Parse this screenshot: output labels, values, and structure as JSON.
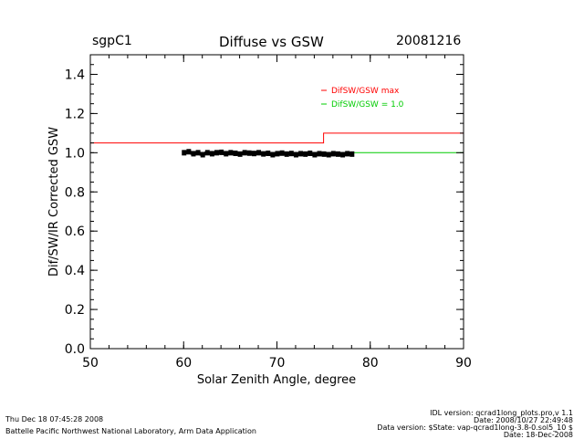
{
  "header": {
    "site": "sgpC1",
    "title": "Diffuse vs GSW",
    "date": "20081216"
  },
  "chart_data": {
    "type": "line",
    "title": "Diffuse vs GSW",
    "xlabel": "Solar Zenith Angle, degree",
    "ylabel": "Dif/SW/IR Corrected GSW",
    "xlim": [
      50,
      90
    ],
    "ylim": [
      0.0,
      1.5
    ],
    "x_ticks": [
      50,
      60,
      70,
      80,
      90
    ],
    "x_tick_labels": [
      "50",
      "60",
      "70",
      "80",
      "90"
    ],
    "y_ticks": [
      0.0,
      0.2,
      0.4,
      0.6,
      0.8,
      1.0,
      1.2,
      1.4
    ],
    "y_tick_labels": [
      "0.0",
      "0.2",
      "0.4",
      "0.6",
      "0.8",
      "1.0",
      "1.2",
      "1.4"
    ],
    "grid": false,
    "legend_position": "top-right",
    "legend": [
      {
        "label": "DifSW/GSW max",
        "color": "#ff0000"
      },
      {
        "label": "DifSW/GSW = 1.0",
        "color": "#00cc00"
      }
    ],
    "series": [
      {
        "name": "DifSW/GSW max",
        "color": "#ff0000",
        "x": [
          50,
          75,
          75,
          90
        ],
        "y": [
          1.05,
          1.05,
          1.1,
          1.1
        ]
      },
      {
        "name": "DifSW/GSW = 1.0",
        "color": "#00cc00",
        "x": [
          75,
          90
        ],
        "y": [
          1.0,
          1.0
        ]
      },
      {
        "type": "scatter",
        "color": "#000000",
        "x": [
          60.0,
          60.5,
          61.0,
          61.5,
          62.0,
          62.5,
          63.0,
          63.5,
          64.0,
          64.5,
          65.0,
          65.5,
          66.0,
          66.5,
          67.0,
          67.5,
          68.0,
          68.5,
          69.0,
          69.5,
          70.0,
          70.5,
          71.0,
          71.5,
          72.0,
          72.5,
          73.0,
          73.5,
          74.0,
          74.5,
          75.0,
          75.5,
          76.0,
          76.5,
          77.0,
          77.5,
          78.0
        ],
        "y": [
          1.0,
          1.005,
          0.995,
          1.0,
          0.99,
          1.0,
          0.995,
          1.0,
          1.002,
          0.995,
          1.0,
          0.997,
          0.993,
          1.0,
          0.998,
          0.996,
          1.0,
          0.994,
          0.997,
          0.99,
          0.995,
          0.998,
          0.993,
          0.996,
          0.99,
          0.995,
          0.993,
          0.997,
          0.99,
          0.995,
          0.993,
          0.99,
          0.995,
          0.993,
          0.99,
          0.995,
          0.993
        ]
      }
    ]
  },
  "footer": {
    "run_time": "Thu Dec 18 07:45:28 2008",
    "organization": "Battelle Pacific Northwest National Laboratory, Arm Data Application",
    "idl_version": "IDL version: qcrad1long_plots.pro,v 1.1",
    "idl_date": "Date: 2008/10/27 22:49:48",
    "data_version": "Data version: $State: vap-qcrad1long-3.8-0.sol5_10 $",
    "data_date": "Date: 18-Dec-2008"
  }
}
